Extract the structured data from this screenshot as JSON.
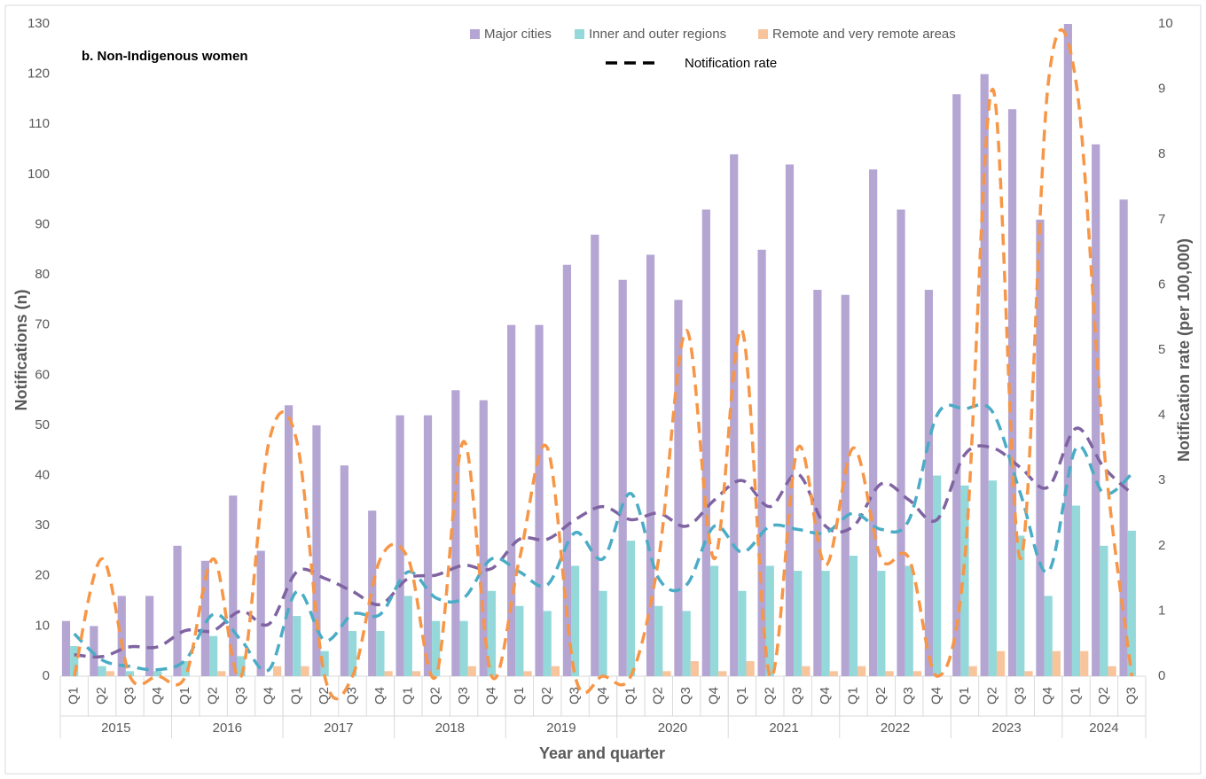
{
  "chart_data": {
    "type": "bar",
    "title": "b. Non-Indigenous women",
    "x_label": "Year and quarter",
    "y_label": "Notifications (n)",
    "y2_label": "Notification rate (per 100,000)",
    "groups": [
      {
        "year": "2015",
        "categories": [
          "Q1",
          "Q2",
          "Q3",
          "Q4"
        ]
      },
      {
        "year": "2016",
        "categories": [
          "Q1",
          "Q2",
          "Q3",
          "Q4"
        ]
      },
      {
        "year": "2017",
        "categories": [
          "Q1",
          "Q2",
          "Q3",
          "Q4"
        ]
      },
      {
        "year": "2018",
        "categories": [
          "Q1",
          "Q2",
          "Q3",
          "Q4"
        ]
      },
      {
        "year": "2019",
        "categories": [
          "Q1",
          "Q2",
          "Q3",
          "Q4"
        ]
      },
      {
        "year": "2020",
        "categories": [
          "Q1",
          "Q2",
          "Q3",
          "Q4"
        ]
      },
      {
        "year": "2021",
        "categories": [
          "Q1",
          "Q2",
          "Q3",
          "Q4"
        ]
      },
      {
        "year": "2022",
        "categories": [
          "Q1",
          "Q2",
          "Q3",
          "Q4"
        ]
      },
      {
        "year": "2023",
        "categories": [
          "Q1",
          "Q2",
          "Q3",
          "Q4"
        ]
      },
      {
        "year": "2024",
        "categories": [
          "Q1",
          "Q2",
          "Q3"
        ]
      }
    ],
    "series": [
      {
        "name": "Major cities",
        "color": "#b4a5d2",
        "values": [
          11,
          10,
          16,
          16,
          26,
          23,
          36,
          25,
          54,
          50,
          42,
          33,
          52,
          52,
          57,
          55,
          70,
          70,
          82,
          88,
          79,
          84,
          75,
          93,
          104,
          85,
          102,
          77,
          76,
          101,
          93,
          77,
          116,
          120,
          113,
          91,
          130,
          106,
          95
        ]
      },
      {
        "name": "Inner and outer regions",
        "color": "#94d8d9",
        "values": [
          6,
          2,
          1,
          1,
          3,
          8,
          4,
          0,
          12,
          5,
          9,
          9,
          16,
          11,
          11,
          17,
          14,
          13,
          22,
          17,
          27,
          14,
          13,
          22,
          17,
          22,
          21,
          21,
          24,
          21,
          22,
          40,
          38,
          39,
          28,
          16,
          34,
          26,
          29
        ]
      },
      {
        "name": "Remote and very remote areas",
        "color": "#f8c49c",
        "values": [
          0,
          1,
          0,
          0,
          0,
          1,
          0,
          2,
          2,
          0,
          0,
          1,
          1,
          0,
          2,
          0,
          1,
          2,
          0,
          0,
          0,
          1,
          3,
          1,
          3,
          0,
          2,
          1,
          2,
          1,
          1,
          0,
          2,
          5,
          1,
          5,
          5,
          2,
          0
        ]
      }
    ],
    "rate_legend": "Notification rate",
    "rate_legend_color": "#000000",
    "rate_series": [
      {
        "color": "#8064a2",
        "axis": "y2",
        "values": [
          0.33,
          0.3,
          0.45,
          0.45,
          0.7,
          0.7,
          1.0,
          0.8,
          1.6,
          1.5,
          1.3,
          1.1,
          1.5,
          1.55,
          1.7,
          1.65,
          2.1,
          2.1,
          2.4,
          2.6,
          2.4,
          2.5,
          2.3,
          2.7,
          3.0,
          2.6,
          3.1,
          2.3,
          2.3,
          2.95,
          2.7,
          2.4,
          3.4,
          3.5,
          3.2,
          2.9,
          3.8,
          3.2,
          2.8
        ]
      },
      {
        "color": "#4bacc6",
        "axis": "y2",
        "values": [
          0.65,
          0.25,
          0.15,
          0.1,
          0.25,
          0.95,
          0.55,
          0.1,
          1.3,
          0.55,
          0.95,
          0.95,
          1.6,
          1.2,
          1.2,
          1.8,
          1.6,
          1.4,
          2.2,
          1.8,
          2.8,
          1.5,
          1.4,
          2.3,
          1.9,
          2.3,
          2.25,
          2.2,
          2.5,
          2.25,
          2.4,
          4.0,
          4.1,
          4.05,
          2.8,
          1.6,
          3.5,
          2.8,
          3.1
        ]
      },
      {
        "color": "#f79646",
        "axis": "y2",
        "values": [
          0,
          1.8,
          0,
          0,
          0,
          1.8,
          0,
          3.6,
          3.6,
          0,
          0,
          1.8,
          1.8,
          0,
          3.6,
          0,
          1.8,
          3.5,
          0,
          0,
          0,
          1.8,
          5.3,
          1.8,
          5.3,
          0,
          3.5,
          1.7,
          3.5,
          1.8,
          1.8,
          0,
          1.8,
          9.0,
          1.8,
          9.1,
          9.1,
          3.5,
          0
        ]
      }
    ],
    "ylim": [
      0,
      130
    ],
    "yticks": [
      0,
      10,
      20,
      30,
      40,
      50,
      60,
      70,
      80,
      90,
      100,
      110,
      120,
      130
    ],
    "y2lim": [
      0,
      10
    ],
    "y2ticks": [
      0,
      1,
      2,
      3,
      4,
      5,
      6,
      7,
      8,
      9,
      10
    ],
    "grid": false
  }
}
